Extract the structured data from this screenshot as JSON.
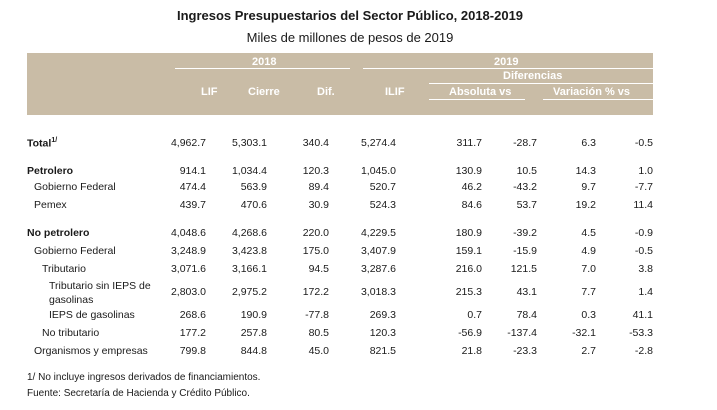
{
  "title": "Ingresos Presupuestarios del Sector Público, 2018-2019",
  "subtitle": "Miles de millones de pesos de 2019",
  "header": {
    "year1": "2018",
    "year2": "2019",
    "diferencias": "Diferencias",
    "absoluta": "Absoluta vs",
    "variacion": "Variación % vs",
    "columns": [
      "LIF",
      "Cierre",
      "Dif.",
      "ILIF"
    ]
  },
  "rows": [
    {
      "label": "Total",
      "sup": "1/",
      "bold": true,
      "indent": 0,
      "values": [
        "4,962.7",
        "5,303.1",
        "340.4",
        "5,274.4",
        "311.7",
        "-28.7",
        "6.3",
        "-0.5"
      ]
    },
    {
      "label": "Petrolero",
      "bold": true,
      "indent": 0,
      "values": [
        "914.1",
        "1,034.4",
        "120.3",
        "1,045.0",
        "130.9",
        "10.5",
        "14.3",
        "1.0"
      ]
    },
    {
      "label": "Gobierno Federal",
      "bold": false,
      "indent": 1,
      "values": [
        "474.4",
        "563.9",
        "89.4",
        "520.7",
        "46.2",
        "-43.2",
        "9.7",
        "-7.7"
      ]
    },
    {
      "label": "Pemex",
      "bold": false,
      "indent": 1,
      "values": [
        "439.7",
        "470.6",
        "30.9",
        "524.3",
        "84.6",
        "53.7",
        "19.2",
        "11.4"
      ]
    },
    {
      "label": "No petrolero",
      "bold": true,
      "indent": 0,
      "values": [
        "4,048.6",
        "4,268.6",
        "220.0",
        "4,229.5",
        "180.9",
        "-39.2",
        "4.5",
        "-0.9"
      ]
    },
    {
      "label": "Gobierno Federal",
      "bold": false,
      "indent": 1,
      "values": [
        "3,248.9",
        "3,423.8",
        "175.0",
        "3,407.9",
        "159.1",
        "-15.9",
        "4.9",
        "-0.5"
      ]
    },
    {
      "label": "Tributario",
      "bold": false,
      "indent": 2,
      "values": [
        "3,071.6",
        "3,166.1",
        "94.5",
        "3,287.6",
        "216.0",
        "121.5",
        "7.0",
        "3.8"
      ]
    },
    {
      "label": "Tributario sin IEPS de",
      "label2": "gasolinas",
      "bold": false,
      "indent": 3,
      "values": [
        "2,803.0",
        "2,975.2",
        "172.2",
        "3,018.3",
        "215.3",
        "43.1",
        "7.7",
        "1.4"
      ]
    },
    {
      "label": "IEPS de gasolinas",
      "bold": false,
      "indent": 3,
      "values": [
        "268.6",
        "190.9",
        "-77.8",
        "269.3",
        "0.7",
        "78.4",
        "0.3",
        "41.1"
      ]
    },
    {
      "label": "No tributario",
      "bold": false,
      "indent": 2,
      "values": [
        "177.2",
        "257.8",
        "80.5",
        "120.3",
        "-56.9",
        "-137.4",
        "-32.1",
        "-53.3"
      ]
    },
    {
      "label": "Organismos y empresas",
      "bold": false,
      "indent": 1,
      "values": [
        "799.8",
        "844.8",
        "45.0",
        "821.5",
        "21.8",
        "-23.3",
        "2.7",
        "-2.8"
      ]
    }
  ],
  "footnotes": {
    "note1": "1/ No incluye ingresos derivados de financiamientos.",
    "source": "Fuente: Secretaría de Hacienda y Crédito Público."
  }
}
